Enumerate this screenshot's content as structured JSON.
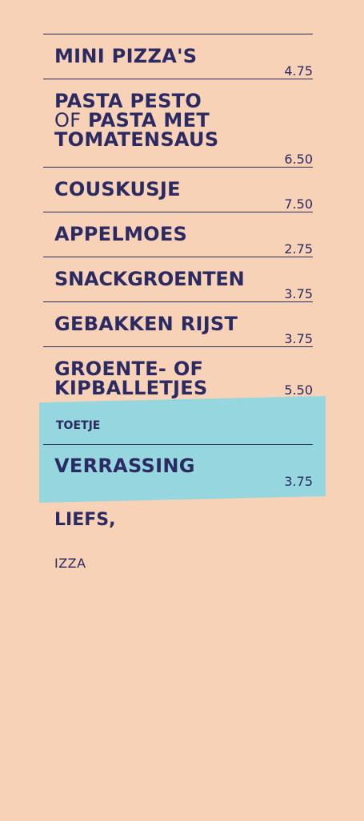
{
  "menu": {
    "items": [
      {
        "name": "MINI PIZZA'S",
        "price": "4.75"
      },
      {
        "name_line1": "PASTA PESTO",
        "name_line2_thin": "OF",
        "name_line2_bold": "PASTA MET",
        "name_line3": "TOMATENSAUS",
        "price": "6.50"
      },
      {
        "name": "COUSKUSJE",
        "price": "7.50"
      },
      {
        "name": "APPELMOES",
        "price": "2.75"
      },
      {
        "name": "SNACKGROENTEN",
        "price": "3.75"
      },
      {
        "name": "GEBAKKEN RIJST",
        "price": "3.75"
      },
      {
        "name_line1": "GROENTE- OF",
        "name_line2": "KIPBALLETJES",
        "price": "5.50"
      }
    ]
  },
  "dessert": {
    "label": "TOETJE",
    "item": {
      "name": "VERRASSING",
      "price": "3.75"
    }
  },
  "footer": {
    "closing": "LIEFS,",
    "signature": "IZZA"
  },
  "colors": {
    "background": "#f7d2b7",
    "ink": "#2b2a63",
    "band": "#96d6df"
  }
}
